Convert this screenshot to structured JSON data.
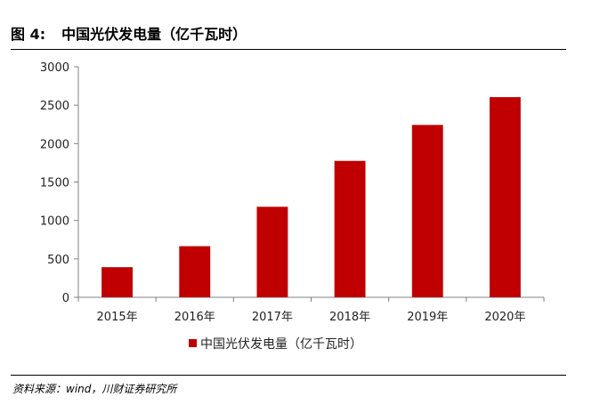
{
  "figure": {
    "label": "图 4:",
    "title": "中国光伏发电量（亿千瓦时）",
    "source": "资料来源：wind，川财证券研究所"
  },
  "chart_data": {
    "type": "bar",
    "title": "",
    "xlabel": "",
    "ylabel": "",
    "categories": [
      "2015年",
      "2016年",
      "2017年",
      "2018年",
      "2019年",
      "2020年"
    ],
    "series": [
      {
        "name": "中国光伏发电量（亿千瓦时）",
        "values": [
          392,
          665,
          1178,
          1775,
          2243,
          2605
        ],
        "color": "#c00000"
      }
    ],
    "ylim": [
      0,
      3000
    ],
    "yticks": [
      0,
      500,
      1000,
      1500,
      2000,
      2500,
      3000
    ],
    "grid": false,
    "legend_position": "bottom"
  },
  "colors": {
    "bar": "#c00000",
    "axis": "#808080"
  }
}
